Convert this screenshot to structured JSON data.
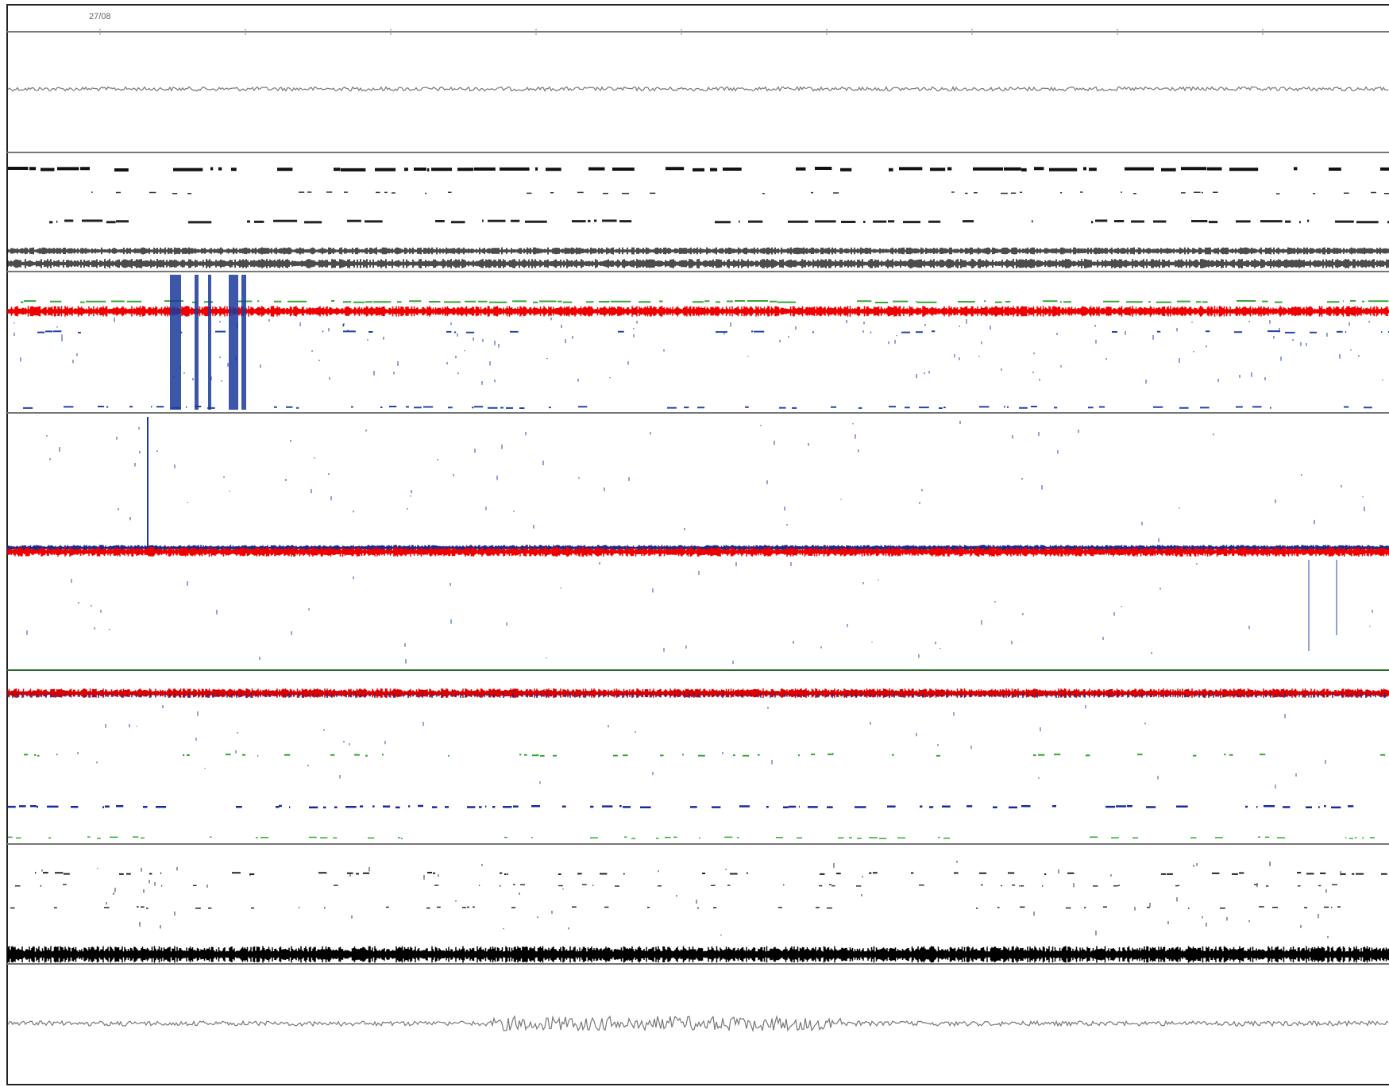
{
  "header": {
    "date": "27/08"
  }
}
